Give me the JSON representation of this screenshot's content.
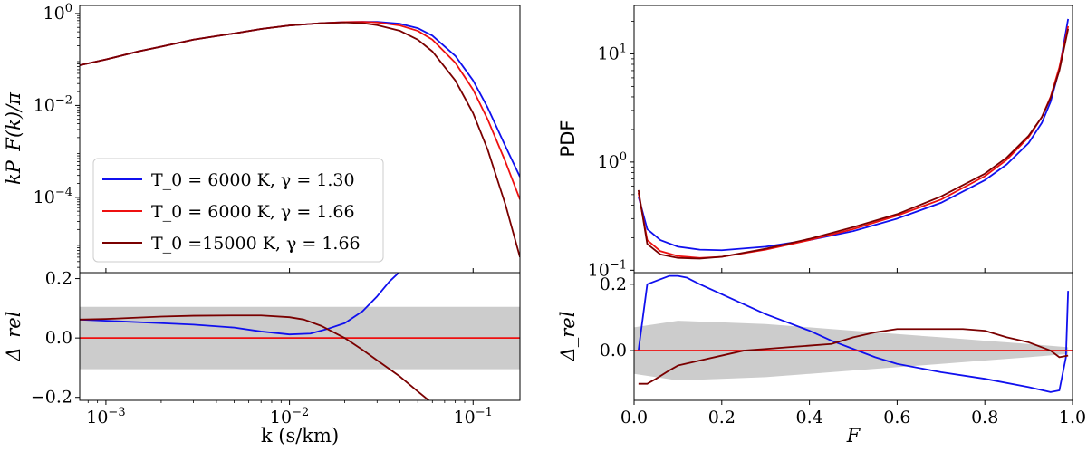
{
  "chart_data": [
    {
      "type": "line",
      "panel": "left-top",
      "xscale": "log",
      "yscale": "log",
      "xlim": [
        0.00072,
        0.18
      ],
      "ylim": [
        2.3e-06,
        1.5
      ],
      "ylabel": "kP_F(k)/π",
      "yticks": [
        {
          "v": 1,
          "label": "10^0"
        },
        {
          "v": 0.01,
          "label": "10^-2"
        },
        {
          "v": 0.0001,
          "label": "10^-4"
        }
      ],
      "legend_position": "lower-left",
      "series": [
        {
          "name": "T_0 = 6000 K, γ = 1.30",
          "color": "#1010ee",
          "x": [
            0.00072,
            0.001,
            0.0015,
            0.002,
            0.003,
            0.005,
            0.007,
            0.01,
            0.015,
            0.02,
            0.025,
            0.03,
            0.04,
            0.05,
            0.06,
            0.08,
            0.1,
            0.12,
            0.15,
            0.18
          ],
          "y": [
            0.075,
            0.1,
            0.15,
            0.19,
            0.27,
            0.37,
            0.46,
            0.55,
            0.62,
            0.65,
            0.66,
            0.66,
            0.6,
            0.48,
            0.33,
            0.12,
            0.035,
            0.009,
            0.0013,
            0.00028
          ]
        },
        {
          "name": "T_0 = 6000 K, γ = 1.66",
          "color": "#ee1010",
          "x": [
            0.00072,
            0.001,
            0.0015,
            0.002,
            0.003,
            0.005,
            0.007,
            0.01,
            0.015,
            0.02,
            0.025,
            0.03,
            0.04,
            0.05,
            0.06,
            0.08,
            0.1,
            0.12,
            0.15,
            0.18
          ],
          "y": [
            0.075,
            0.1,
            0.15,
            0.19,
            0.27,
            0.37,
            0.46,
            0.55,
            0.62,
            0.65,
            0.66,
            0.64,
            0.55,
            0.42,
            0.27,
            0.085,
            0.022,
            0.005,
            0.0006,
            9e-05
          ]
        },
        {
          "name": "T_0 =15000 K, γ = 1.66",
          "color": "#7a0000",
          "x": [
            0.00072,
            0.001,
            0.0015,
            0.002,
            0.003,
            0.005,
            0.007,
            0.01,
            0.015,
            0.02,
            0.025,
            0.03,
            0.04,
            0.05,
            0.06,
            0.08,
            0.1,
            0.12,
            0.15,
            0.18
          ],
          "y": [
            0.075,
            0.1,
            0.15,
            0.19,
            0.27,
            0.37,
            0.46,
            0.55,
            0.62,
            0.64,
            0.62,
            0.56,
            0.42,
            0.27,
            0.15,
            0.035,
            0.0068,
            0.0011,
            7e-05,
            5e-06
          ]
        }
      ]
    },
    {
      "type": "line",
      "panel": "left-bottom",
      "xscale": "log",
      "xlim": [
        0.00072,
        0.18
      ],
      "ylim": [
        -0.21,
        0.22
      ],
      "xlabel": "k (s/km)",
      "ylabel": "Δ_rel",
      "xticks": [
        {
          "v": 0.001,
          "label": "10^-3"
        },
        {
          "v": 0.01,
          "label": "10^-2"
        },
        {
          "v": 0.1,
          "label": "10^-1"
        }
      ],
      "yticks": [
        {
          "v": 0.2,
          "label": "0.2"
        },
        {
          "v": 0.0,
          "label": "0.0"
        },
        {
          "v": -0.2,
          "label": "−0.2"
        }
      ],
      "band": {
        "x": [
          0.00072,
          0.18
        ],
        "upper": [
          0.105,
          0.105
        ],
        "lower": [
          -0.105,
          -0.105
        ]
      },
      "reference_value": 0.0,
      "series": [
        {
          "name": "T_0 = 6000 K, γ = 1.30",
          "color": "#1010ee",
          "x": [
            0.00072,
            0.001,
            0.002,
            0.003,
            0.005,
            0.007,
            0.01,
            0.013,
            0.016,
            0.02,
            0.025,
            0.03,
            0.035,
            0.041
          ],
          "y": [
            0.062,
            0.058,
            0.05,
            0.045,
            0.035,
            0.022,
            0.012,
            0.015,
            0.03,
            0.05,
            0.09,
            0.14,
            0.19,
            0.23
          ]
        },
        {
          "name": "T_0 = 6000 K, γ = 1.66",
          "color": "#ee1010",
          "x": [
            0.00072,
            0.18
          ],
          "y": [
            0.0,
            0.0
          ]
        },
        {
          "name": "T_0 =15000 K, γ = 1.66",
          "color": "#7a0000",
          "x": [
            0.00072,
            0.001,
            0.002,
            0.003,
            0.005,
            0.007,
            0.01,
            0.012,
            0.015,
            0.02,
            0.025,
            0.03,
            0.04,
            0.05,
            0.06
          ],
          "y": [
            0.062,
            0.064,
            0.072,
            0.075,
            0.076,
            0.076,
            0.07,
            0.062,
            0.04,
            0.0,
            -0.04,
            -0.075,
            -0.13,
            -0.18,
            -0.22
          ]
        }
      ]
    },
    {
      "type": "line",
      "panel": "right-top",
      "yscale": "log",
      "xlim": [
        0.0,
        1.0
      ],
      "ylim": [
        0.095,
        28
      ],
      "ylabel": "PDF",
      "yticks": [
        {
          "v": 10,
          "label": "10^1"
        },
        {
          "v": 1,
          "label": "10^0"
        },
        {
          "v": 0.1,
          "label": "10^-1"
        }
      ],
      "series": [
        {
          "name": "T_0 = 6000 K, γ = 1.30",
          "color": "#1010ee",
          "x": [
            0.01,
            0.03,
            0.06,
            0.1,
            0.15,
            0.2,
            0.3,
            0.4,
            0.5,
            0.6,
            0.7,
            0.8,
            0.85,
            0.9,
            0.93,
            0.95,
            0.97,
            0.99
          ],
          "y": [
            0.48,
            0.24,
            0.19,
            0.165,
            0.155,
            0.153,
            0.165,
            0.19,
            0.23,
            0.3,
            0.42,
            0.68,
            0.95,
            1.5,
            2.3,
            3.6,
            7.2,
            21
          ]
        },
        {
          "name": "T_0 = 6000 K, γ = 1.66",
          "color": "#ee1010",
          "x": [
            0.01,
            0.03,
            0.06,
            0.1,
            0.15,
            0.2,
            0.3,
            0.4,
            0.5,
            0.6,
            0.7,
            0.8,
            0.85,
            0.9,
            0.93,
            0.95,
            0.97,
            0.99
          ],
          "y": [
            0.52,
            0.19,
            0.15,
            0.135,
            0.13,
            0.133,
            0.155,
            0.19,
            0.24,
            0.32,
            0.45,
            0.74,
            1.05,
            1.7,
            2.6,
            4.0,
            7.5,
            18
          ]
        },
        {
          "name": "T_0 =15000 K, γ = 1.66",
          "color": "#7a0000",
          "x": [
            0.01,
            0.03,
            0.06,
            0.1,
            0.15,
            0.2,
            0.3,
            0.4,
            0.5,
            0.6,
            0.7,
            0.8,
            0.85,
            0.9,
            0.93,
            0.95,
            0.97,
            0.99
          ],
          "y": [
            0.55,
            0.175,
            0.14,
            0.13,
            0.128,
            0.133,
            0.158,
            0.195,
            0.25,
            0.33,
            0.48,
            0.78,
            1.1,
            1.75,
            2.6,
            3.9,
            7.0,
            17
          ]
        }
      ]
    },
    {
      "type": "line",
      "panel": "right-bottom",
      "xlim": [
        0.0,
        1.0
      ],
      "ylim": [
        -0.15,
        0.235
      ],
      "xlabel": "F",
      "ylabel": "Δ_rel",
      "xticks": [
        {
          "v": 0.0,
          "label": "0.0"
        },
        {
          "v": 0.2,
          "label": "0.2"
        },
        {
          "v": 0.4,
          "label": "0.4"
        },
        {
          "v": 0.6,
          "label": "0.6"
        },
        {
          "v": 0.8,
          "label": "0.8"
        },
        {
          "v": 1.0,
          "label": "1.0"
        }
      ],
      "yticks": [
        {
          "v": 0.2,
          "label": "0.2"
        },
        {
          "v": 0.0,
          "label": "0.0"
        }
      ],
      "band": {
        "x": [
          0.0,
          0.1,
          0.2,
          0.3,
          0.4,
          0.5,
          0.6,
          0.7,
          0.8,
          0.9,
          0.99
        ],
        "upper": [
          0.07,
          0.09,
          0.085,
          0.08,
          0.07,
          0.06,
          0.05,
          0.04,
          0.03,
          0.02,
          0.01
        ],
        "lower": [
          -0.07,
          -0.09,
          -0.085,
          -0.08,
          -0.07,
          -0.06,
          -0.05,
          -0.04,
          -0.03,
          -0.02,
          -0.01
        ]
      },
      "reference_value": 0.0,
      "series": [
        {
          "name": "T_0 = 6000 K, γ = 1.30",
          "color": "#1010ee",
          "x": [
            0.01,
            0.03,
            0.06,
            0.08,
            0.1,
            0.12,
            0.15,
            0.2,
            0.25,
            0.3,
            0.35,
            0.4,
            0.45,
            0.5,
            0.55,
            0.6,
            0.7,
            0.8,
            0.9,
            0.95,
            0.97,
            0.985,
            0.99
          ],
          "y": [
            0.0,
            0.2,
            0.215,
            0.225,
            0.225,
            0.22,
            0.2,
            0.17,
            0.14,
            0.11,
            0.085,
            0.06,
            0.03,
            0.005,
            -0.02,
            -0.04,
            -0.065,
            -0.085,
            -0.11,
            -0.125,
            -0.12,
            -0.02,
            0.18
          ]
        },
        {
          "name": "T_0 = 6000 K, γ = 1.66",
          "color": "#ee1010",
          "x": [
            0.0,
            1.0
          ],
          "y": [
            0.0,
            0.0
          ]
        },
        {
          "name": "T_0 =15000 K, γ = 1.66",
          "color": "#7a0000",
          "x": [
            0.01,
            0.03,
            0.05,
            0.08,
            0.1,
            0.15,
            0.2,
            0.25,
            0.3,
            0.35,
            0.4,
            0.45,
            0.5,
            0.55,
            0.6,
            0.65,
            0.7,
            0.75,
            0.8,
            0.85,
            0.9,
            0.95,
            0.97,
            0.99
          ],
          "y": [
            -0.1,
            -0.1,
            -0.085,
            -0.06,
            -0.045,
            -0.03,
            -0.015,
            0.0,
            0.005,
            0.01,
            0.015,
            0.02,
            0.04,
            0.055,
            0.065,
            0.065,
            0.065,
            0.065,
            0.06,
            0.04,
            0.025,
            0.0,
            -0.02,
            -0.015
          ]
        }
      ]
    }
  ]
}
